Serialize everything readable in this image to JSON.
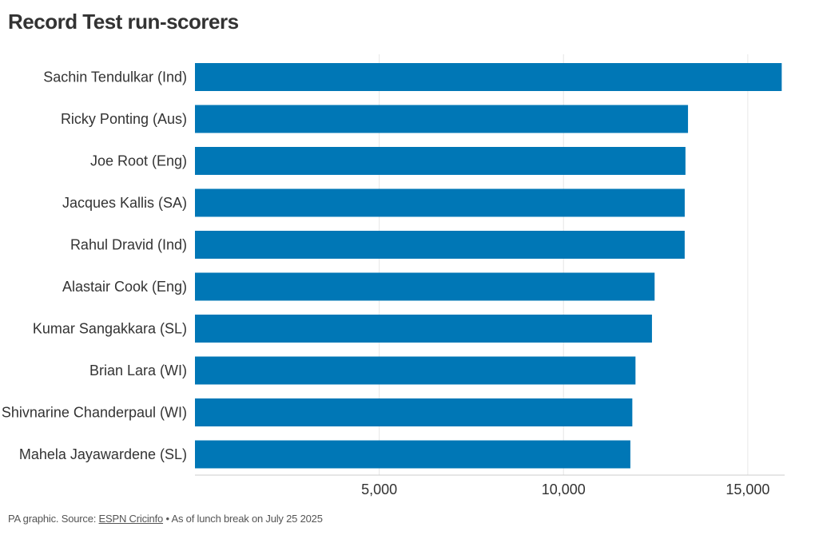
{
  "chart_data": {
    "type": "bar",
    "orientation": "horizontal",
    "title": "Record Test run-scorers",
    "categories": [
      "Sachin Tendulkar (Ind)",
      "Ricky Ponting (Aus)",
      "Joe Root (Eng)",
      "Jacques Kallis (SA)",
      "Rahul Dravid (Ind)",
      "Alastair Cook (Eng)",
      "Kumar Sangakkara (SL)",
      "Brian Lara (WI)",
      "Shivnarine Chanderpaul (WI)",
      "Mahela Jayawardene (SL)"
    ],
    "values": [
      15921,
      13378,
      13309,
      13289,
      13288,
      12472,
      12400,
      11953,
      11867,
      11814
    ],
    "xlim": [
      0,
      16000
    ],
    "xticks": [
      5000,
      10000,
      15000
    ],
    "xtick_labels": [
      "5,000",
      "10,000",
      "15,000"
    ],
    "grid": "vertical",
    "bar_color": "#0077b6"
  },
  "footer": {
    "prefix": "PA graphic. Source: ",
    "link": "ESPN Cricinfo",
    "suffix": " • As of lunch break on July 25 2025"
  }
}
